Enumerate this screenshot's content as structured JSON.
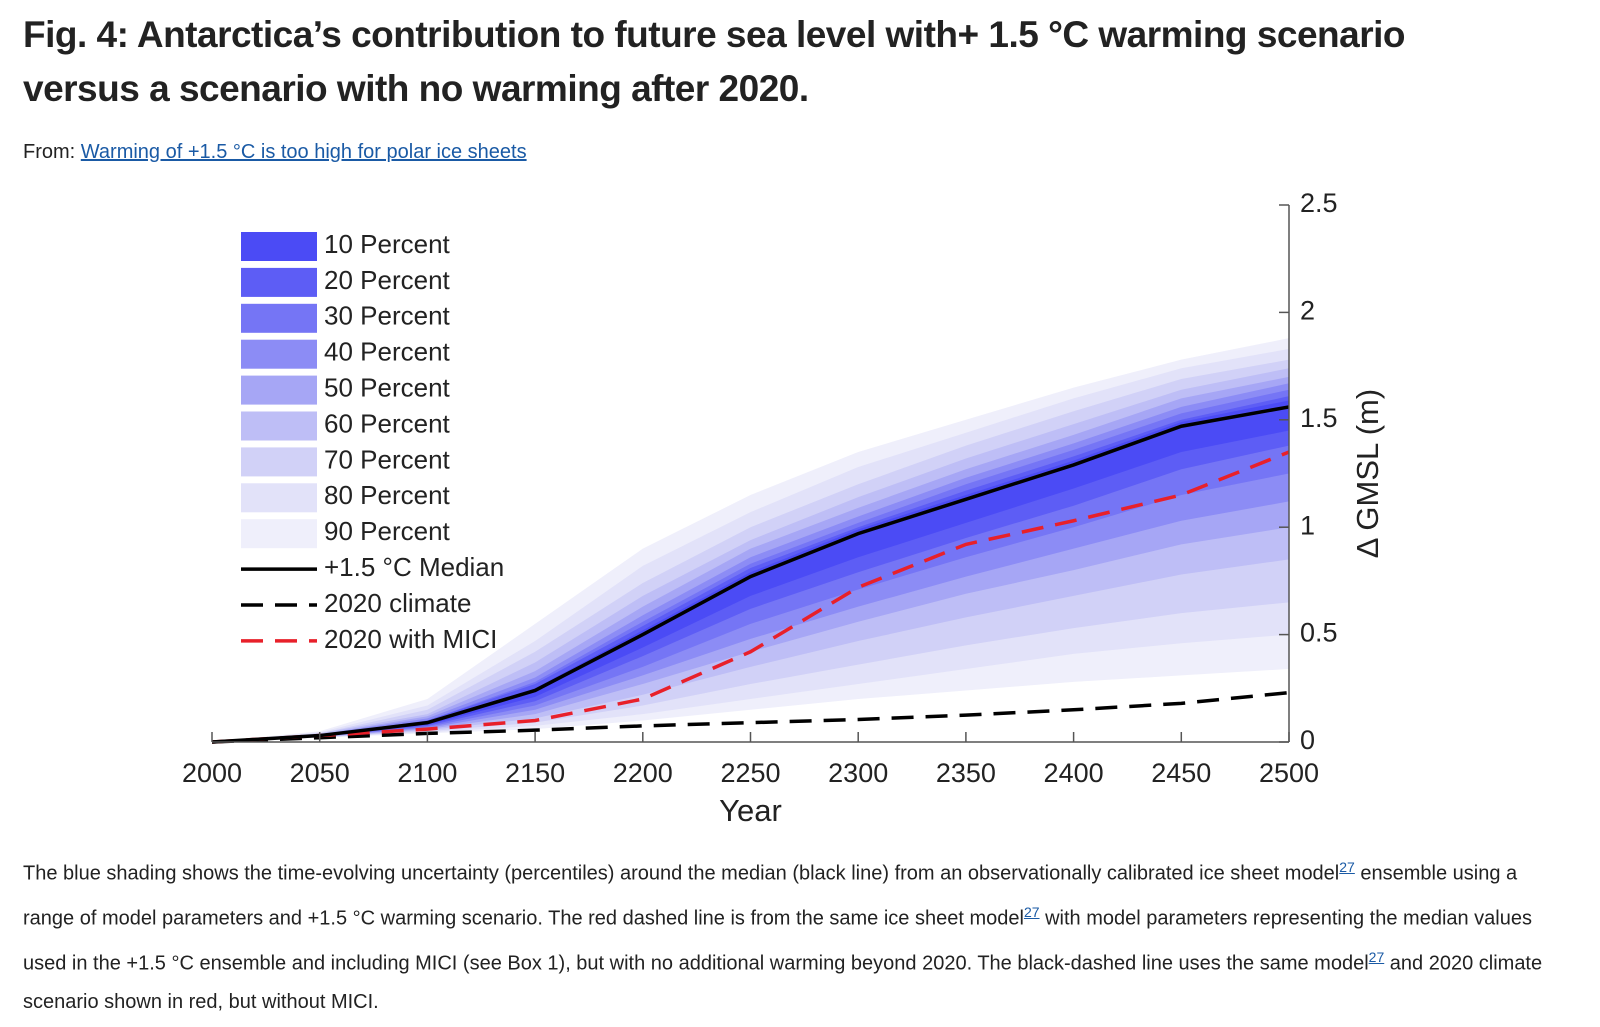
{
  "title": "Fig. 4: Antarctica’s contribution to future sea level with+ 1.5 °C warming scenario versus a scenario with no warming after 2020.",
  "from_label": "From:",
  "source_link": "Warming of +1.5 °C is too high for polar ice sheets",
  "caption": {
    "parts": [
      "The blue shading shows the time-evolving uncertainty (percentiles) around the median (black line) from an observationally calibrated ice sheet model",
      " ensemble using a range of model parameters and +1.5 °C warming scenario. The red dashed line is from the same ice sheet model",
      " with model parameters representing the median values used in the +1.5 °C ensemble and including MICI (see Box 1), but with no additional warming beyond 2020. The black-dashed line uses the same model",
      " and 2020 climate scenario shown in red, but without MICI."
    ],
    "refs": [
      "27",
      "27",
      "27"
    ]
  },
  "chart_data": {
    "type": "line",
    "x_label": "Year",
    "y_label": "Δ GMSL (m)",
    "x": [
      2000,
      2050,
      2100,
      2150,
      2200,
      2250,
      2300,
      2350,
      2400,
      2450,
      2500
    ],
    "xlim": [
      2000,
      2500
    ],
    "xticks": [
      2000,
      2050,
      2100,
      2150,
      2200,
      2250,
      2300,
      2350,
      2400,
      2450,
      2500
    ],
    "ylim": [
      0,
      2.5
    ],
    "yticks": [
      0,
      0.5,
      1,
      1.5,
      2,
      2.5
    ],
    "bands": [
      {
        "name": "10 Percent",
        "color": "#4b4bf5",
        "lower": [
          0,
          0.028,
          0.08,
          0.21,
          0.44,
          0.68,
          0.86,
          1.02,
          1.18,
          1.35,
          1.45
        ],
        "upper": [
          0,
          0.031,
          0.095,
          0.25,
          0.52,
          0.79,
          0.99,
          1.15,
          1.31,
          1.49,
          1.59
        ]
      },
      {
        "name": "20 Percent",
        "color": "#5d5df5",
        "lower": [
          0,
          0.027,
          0.075,
          0.19,
          0.4,
          0.62,
          0.79,
          0.95,
          1.1,
          1.27,
          1.38
        ],
        "upper": [
          0,
          0.032,
          0.1,
          0.27,
          0.54,
          0.81,
          1.0,
          1.17,
          1.33,
          1.5,
          1.61
        ]
      },
      {
        "name": "30 Percent",
        "color": "#7575f5",
        "lower": [
          0,
          0.026,
          0.07,
          0.17,
          0.35,
          0.55,
          0.71,
          0.86,
          1.0,
          1.15,
          1.25
        ],
        "upper": [
          0,
          0.033,
          0.1,
          0.28,
          0.56,
          0.83,
          1.02,
          1.2,
          1.36,
          1.53,
          1.64
        ]
      },
      {
        "name": "40 Percent",
        "color": "#8c8cf5",
        "lower": [
          0,
          0.025,
          0.065,
          0.15,
          0.31,
          0.48,
          0.63,
          0.77,
          0.9,
          1.03,
          1.12
        ],
        "upper": [
          0,
          0.035,
          0.11,
          0.3,
          0.59,
          0.86,
          1.05,
          1.23,
          1.39,
          1.56,
          1.67
        ]
      },
      {
        "name": "50 Percent",
        "color": "#a6a6f5",
        "lower": [
          0,
          0.024,
          0.06,
          0.13,
          0.27,
          0.42,
          0.56,
          0.69,
          0.8,
          0.92,
          1.0
        ],
        "upper": [
          0,
          0.035,
          0.12,
          0.33,
          0.63,
          0.9,
          1.09,
          1.27,
          1.43,
          1.6,
          1.7
        ]
      },
      {
        "name": "60 Percent",
        "color": "#bebef6",
        "lower": [
          0,
          0.023,
          0.055,
          0.11,
          0.22,
          0.35,
          0.47,
          0.58,
          0.68,
          0.78,
          0.85
        ],
        "upper": [
          0,
          0.04,
          0.13,
          0.37,
          0.68,
          0.94,
          1.14,
          1.32,
          1.48,
          1.64,
          1.74
        ]
      },
      {
        "name": "70 Percent",
        "color": "#d1d1f7",
        "lower": [
          0,
          0.022,
          0.05,
          0.09,
          0.17,
          0.27,
          0.36,
          0.45,
          0.53,
          0.6,
          0.65
        ],
        "upper": [
          0,
          0.04,
          0.15,
          0.42,
          0.74,
          1.0,
          1.2,
          1.38,
          1.54,
          1.69,
          1.78
        ]
      },
      {
        "name": "80 Percent",
        "color": "#e2e2f9",
        "lower": [
          0,
          0.021,
          0.045,
          0.075,
          0.13,
          0.2,
          0.27,
          0.34,
          0.41,
          0.46,
          0.5
        ],
        "upper": [
          0,
          0.045,
          0.17,
          0.47,
          0.82,
          1.07,
          1.28,
          1.44,
          1.6,
          1.74,
          1.83
        ]
      },
      {
        "name": "90 Percent",
        "color": "#efeffb",
        "lower": [
          0,
          0.02,
          0.04,
          0.06,
          0.1,
          0.15,
          0.2,
          0.24,
          0.28,
          0.31,
          0.34
        ],
        "upper": [
          0,
          0.05,
          0.2,
          0.55,
          0.9,
          1.15,
          1.35,
          1.5,
          1.65,
          1.78,
          1.88
        ]
      }
    ],
    "series": [
      {
        "name": "+1.5 °C Median",
        "color": "#000000",
        "dashed": false,
        "values": [
          0,
          0.03,
          0.09,
          0.24,
          0.5,
          0.77,
          0.97,
          1.13,
          1.29,
          1.47,
          1.56
        ]
      },
      {
        "name": "2020 climate",
        "color": "#000000",
        "dashed": true,
        "values": [
          0,
          0.02,
          0.04,
          0.055,
          0.075,
          0.09,
          0.105,
          0.125,
          0.15,
          0.18,
          0.23
        ]
      },
      {
        "name": "2020 with MICI",
        "color": "#e8202a",
        "dashed": true,
        "values": [
          0,
          0.03,
          0.06,
          0.1,
          0.2,
          0.42,
          0.72,
          0.92,
          1.03,
          1.15,
          1.35
        ]
      }
    ]
  }
}
